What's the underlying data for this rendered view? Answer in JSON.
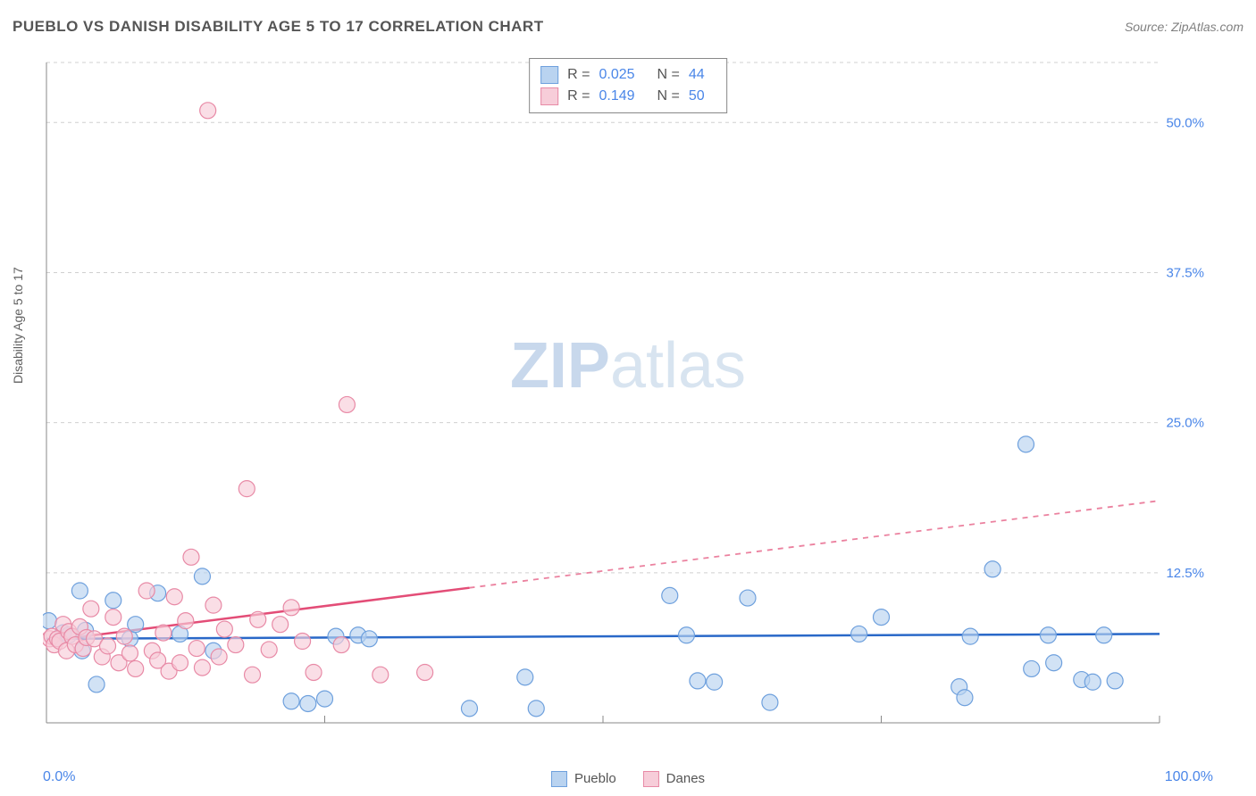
{
  "title": "PUEBLO VS DANISH DISABILITY AGE 5 TO 17 CORRELATION CHART",
  "source": "Source: ZipAtlas.com",
  "y_axis_label": "Disability Age 5 to 17",
  "watermark_bold": "ZIP",
  "watermark_rest": "atlas",
  "x_min_label": "0.0%",
  "x_max_label": "100.0%",
  "chart": {
    "type": "scatter",
    "xlim": [
      0,
      100
    ],
    "ylim": [
      0,
      55
    ],
    "y_ticks": [
      12.5,
      25.0,
      37.5,
      50.0
    ],
    "y_tick_labels": [
      "12.5%",
      "25.0%",
      "37.5%",
      "50.0%"
    ],
    "x_ticks": [
      25,
      50,
      75,
      100
    ],
    "grid_color": "#d0d0d0",
    "axis_color": "#888888",
    "background_color": "#ffffff",
    "marker_radius": 9,
    "marker_stroke_width": 1.2,
    "series": [
      {
        "name": "Pueblo",
        "fill_color": "#b9d3f0",
        "stroke_color": "#6ea0dd",
        "line_color": "#2968c8",
        "R": "0.025",
        "N": "44",
        "trend": {
          "x1": 0,
          "y1": 7.0,
          "x2": 100,
          "y2": 7.4,
          "solid_until_x": 100
        },
        "points": [
          [
            0.2,
            8.5
          ],
          [
            1.0,
            7.0
          ],
          [
            1.5,
            7.5
          ],
          [
            2.0,
            7.3
          ],
          [
            3.0,
            11.0
          ],
          [
            3.2,
            6.0
          ],
          [
            3.5,
            7.7
          ],
          [
            4.5,
            3.2
          ],
          [
            6.0,
            10.2
          ],
          [
            7.5,
            7.0
          ],
          [
            8.0,
            8.2
          ],
          [
            10.0,
            10.8
          ],
          [
            12.0,
            7.4
          ],
          [
            14.0,
            12.2
          ],
          [
            15.0,
            6.0
          ],
          [
            22.0,
            1.8
          ],
          [
            23.5,
            1.6
          ],
          [
            25.0,
            2.0
          ],
          [
            26.0,
            7.2
          ],
          [
            28.0,
            7.3
          ],
          [
            29.0,
            7.0
          ],
          [
            38.0,
            1.2
          ],
          [
            43.0,
            3.8
          ],
          [
            44.0,
            1.2
          ],
          [
            56.0,
            10.6
          ],
          [
            57.5,
            7.3
          ],
          [
            58.5,
            3.5
          ],
          [
            60.0,
            3.4
          ],
          [
            63.0,
            10.4
          ],
          [
            65.0,
            1.7
          ],
          [
            73.0,
            7.4
          ],
          [
            75.0,
            8.8
          ],
          [
            82.0,
            3.0
          ],
          [
            82.5,
            2.1
          ],
          [
            83.0,
            7.2
          ],
          [
            85.0,
            12.8
          ],
          [
            88.0,
            23.2
          ],
          [
            88.5,
            4.5
          ],
          [
            90.0,
            7.3
          ],
          [
            90.5,
            5.0
          ],
          [
            93.0,
            3.6
          ],
          [
            94.0,
            3.4
          ],
          [
            95.0,
            7.3
          ],
          [
            96.0,
            3.5
          ]
        ]
      },
      {
        "name": "Danes",
        "fill_color": "#f7cdd9",
        "stroke_color": "#e88aa6",
        "line_color": "#e34d77",
        "R": "0.149",
        "N": "50",
        "trend": {
          "x1": 0,
          "y1": 6.8,
          "x2": 100,
          "y2": 18.5,
          "solid_until_x": 38
        },
        "points": [
          [
            0.3,
            7.0
          ],
          [
            0.5,
            7.2
          ],
          [
            0.7,
            6.5
          ],
          [
            1.0,
            7.0
          ],
          [
            1.2,
            6.8
          ],
          [
            1.5,
            8.2
          ],
          [
            1.8,
            6.0
          ],
          [
            2.0,
            7.6
          ],
          [
            2.3,
            7.2
          ],
          [
            2.6,
            6.5
          ],
          [
            3.0,
            8.0
          ],
          [
            3.3,
            6.2
          ],
          [
            3.6,
            7.1
          ],
          [
            4.0,
            9.5
          ],
          [
            4.3,
            7.0
          ],
          [
            5.0,
            5.5
          ],
          [
            5.5,
            6.4
          ],
          [
            6.0,
            8.8
          ],
          [
            6.5,
            5.0
          ],
          [
            7.0,
            7.2
          ],
          [
            7.5,
            5.8
          ],
          [
            8.0,
            4.5
          ],
          [
            9.0,
            11.0
          ],
          [
            9.5,
            6.0
          ],
          [
            10.0,
            5.2
          ],
          [
            10.5,
            7.5
          ],
          [
            11.0,
            4.3
          ],
          [
            11.5,
            10.5
          ],
          [
            12.0,
            5.0
          ],
          [
            12.5,
            8.5
          ],
          [
            13.0,
            13.8
          ],
          [
            13.5,
            6.2
          ],
          [
            14.0,
            4.6
          ],
          [
            14.5,
            51.0
          ],
          [
            15.0,
            9.8
          ],
          [
            15.5,
            5.5
          ],
          [
            16.0,
            7.8
          ],
          [
            17.0,
            6.5
          ],
          [
            18.0,
            19.5
          ],
          [
            18.5,
            4.0
          ],
          [
            19.0,
            8.6
          ],
          [
            20.0,
            6.1
          ],
          [
            21.0,
            8.2
          ],
          [
            22.0,
            9.6
          ],
          [
            23.0,
            6.8
          ],
          [
            24.0,
            4.2
          ],
          [
            27.0,
            26.5
          ],
          [
            26.5,
            6.5
          ],
          [
            30.0,
            4.0
          ],
          [
            34.0,
            4.2
          ]
        ]
      }
    ],
    "x_legend_series": [
      "Pueblo",
      "Danes"
    ]
  }
}
